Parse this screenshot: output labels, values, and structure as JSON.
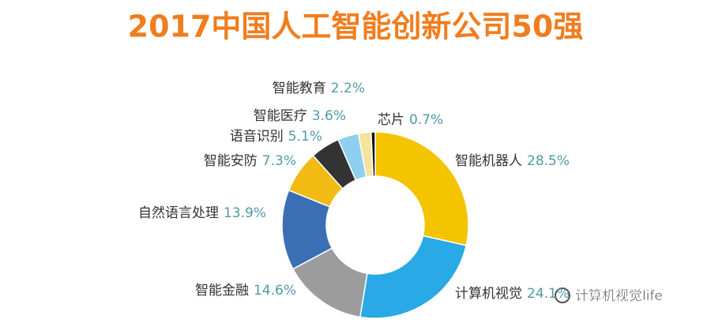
{
  "chart_data": {
    "type": "pie",
    "title": "2017中国人工智能创新公司50强",
    "categories": [
      "智能机器人",
      "计算机视觉",
      "智能金融",
      "自然语言处理",
      "智能安防",
      "语音识别",
      "智能医疗",
      "智能教育",
      "芯片"
    ],
    "values": [
      28.5,
      24.1,
      14.6,
      13.9,
      7.3,
      5.1,
      3.6,
      2.2,
      0.7
    ],
    "value_labels": [
      "28.5%",
      "24.1%",
      "14.6%",
      "13.9%",
      "7.3%",
      "5.1%",
      "3.6%",
      "2.2%",
      "0.7%"
    ],
    "colors": [
      "#f5c400",
      "#29a9e6",
      "#9c9c9c",
      "#3a6fb5",
      "#f2bb14",
      "#333333",
      "#8ecff0",
      "#f6e39c",
      "#111111"
    ],
    "donut": true
  },
  "watermark": "计算机视觉life"
}
